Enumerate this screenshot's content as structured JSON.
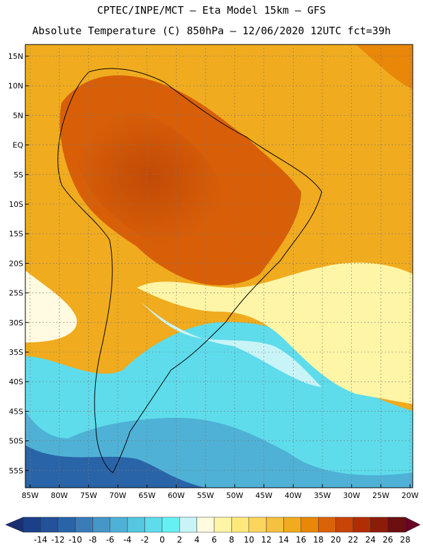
{
  "header": {
    "line1": "CPTEC/INPE/MCT –  Eta Model 15km – GFS",
    "line2": "Absolute Temperature (C) 850hPa – 12/06/2020 12UTC fct=39h"
  },
  "map": {
    "lat_labels": [
      "15N",
      "10N",
      "5N",
      "EQ",
      "5S",
      "10S",
      "15S",
      "20S",
      "25S",
      "30S",
      "35S",
      "40S",
      "45S",
      "50S",
      "55S"
    ],
    "lon_labels": [
      "85W",
      "80W",
      "75W",
      "70W",
      "65W",
      "60W",
      "55W",
      "50W",
      "45W",
      "40W",
      "35W",
      "30W",
      "25W",
      "20W"
    ],
    "temperature_fill": "color-filled 850 hPa temperature field (Eta 15 km)"
  },
  "colorbar": {
    "labels": [
      "-14",
      "-12",
      "-10",
      "-8",
      "-6",
      "-4",
      "-2",
      "0",
      "2",
      "4",
      "6",
      "8",
      "10",
      "12",
      "14",
      "16",
      "18",
      "20",
      "22",
      "24",
      "26",
      "28"
    ],
    "colors": [
      "#1c3f8a",
      "#23519a",
      "#2a64a8",
      "#3a7cb8",
      "#4696c8",
      "#4fb1d6",
      "#55c7e0",
      "#5edceb",
      "#66f0f4",
      "#c8f4f8",
      "#fffae0",
      "#fff5a6",
      "#ffe97a",
      "#fbd55e",
      "#f6c140",
      "#f0ab1e",
      "#e98708",
      "#db6306",
      "#c94407",
      "#b02d06",
      "#8c1c0a",
      "#6b0f10"
    ],
    "low_end_color": "#1a2f70",
    "high_end_color": "#6a0025"
  }
}
